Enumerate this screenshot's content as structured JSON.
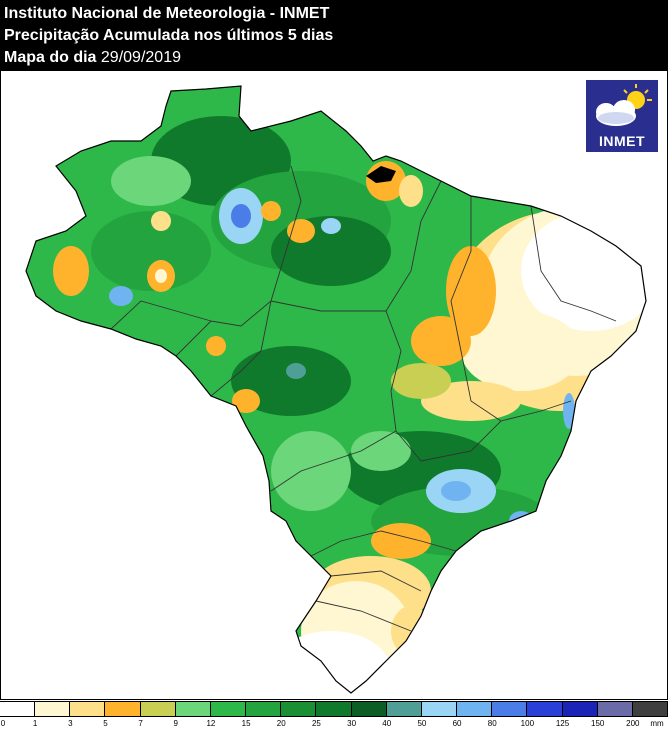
{
  "header": {
    "line1": "Instituto Nacional de Meteorologia - INMET",
    "line2": "Precipitação Acumulada nos últimos 5 dias",
    "line3_label": "Mapa do dia",
    "line3_date": "29/09/2019"
  },
  "logo": {
    "text": "INMET"
  },
  "legend": {
    "unit": "mm",
    "ticks": [
      "0",
      "1",
      "3",
      "5",
      "7",
      "9",
      "12",
      "15",
      "20",
      "25",
      "30",
      "40",
      "50",
      "60",
      "80",
      "100",
      "125",
      "150",
      "200"
    ],
    "colors": [
      "#ffffff",
      "#fff7d1",
      "#ffe08a",
      "#ffb32c",
      "#c8cf52",
      "#6bd67a",
      "#2fb84a",
      "#23a43e",
      "#1b8f34",
      "#107a2c",
      "#0d5e24",
      "#4f9f96",
      "#9ad5f5",
      "#6fb3f0",
      "#4a7de8",
      "#2a3fd8",
      "#1a25b8",
      "#6b6ba8",
      "#3f3f3f"
    ]
  },
  "map": {
    "colors": {
      "base_green": "#2fb84a",
      "dark_green": "#107a2c",
      "mid_green": "#23a43e",
      "light_green": "#6bd67a",
      "yellow_green": "#c8cf52",
      "orange": "#ffb32c",
      "light_orange": "#ffe08a",
      "cream": "#fff7d1",
      "teal": "#4f9f96",
      "light_blue": "#9ad5f5",
      "blue": "#6fb3f0",
      "deep_blue": "#4a7de8",
      "white": "#ffffff",
      "border": "#333333"
    }
  }
}
